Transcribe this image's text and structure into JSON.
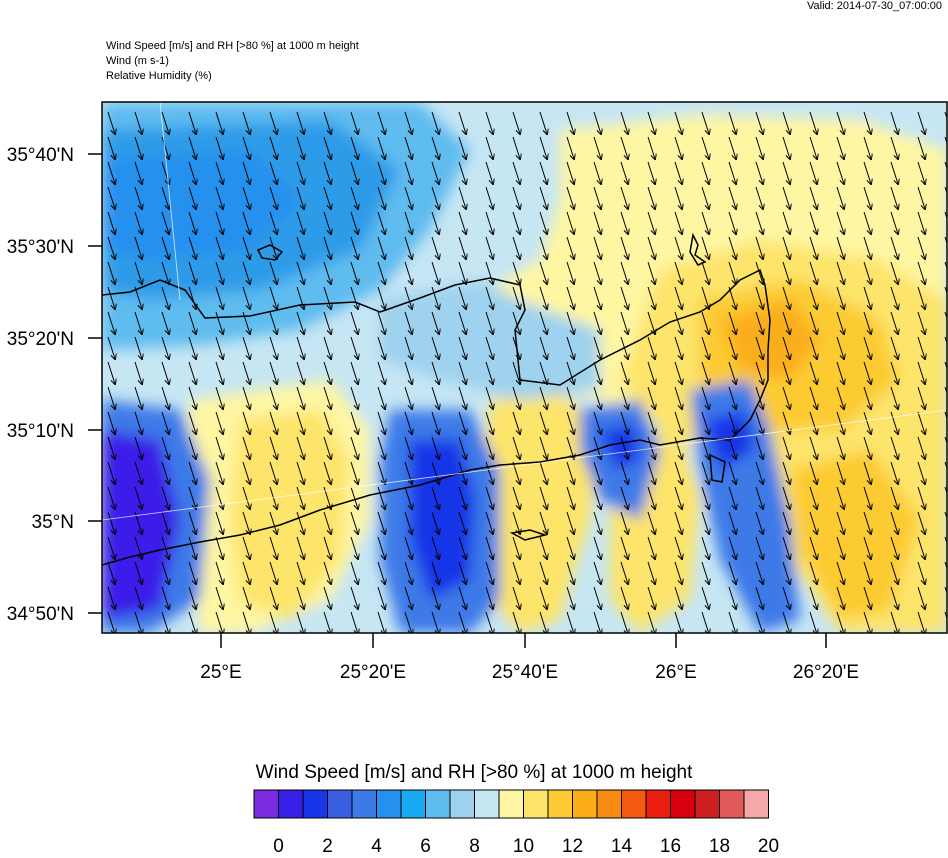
{
  "valid_time": "Valid: 2014-07-30_07:00:00",
  "header_lines": [
    "Wind Speed [m/s] and RH [>80 %] at 1000 m height",
    "Wind   (m s-1)",
    "Relative Humidity    (%)"
  ],
  "map": {
    "lat_labels": [
      "35°40'N",
      "35°30'N",
      "35°20'N",
      "35°10'N",
      "35°N",
      "34°50'N"
    ],
    "lon_labels": [
      "25°E",
      "25°20'E",
      "25°40'E",
      "26°E",
      "26°20'E"
    ],
    "wind_direction": "north-northwest to south-southeast (arrows pointing down-right)"
  },
  "colorbar": {
    "title": "Wind Speed [m/s] and RH [>80 %] at 1000 m height",
    "tick_labels": [
      "0",
      "2",
      "4",
      "6",
      "8",
      "10",
      "12",
      "14",
      "16",
      "18",
      "20"
    ],
    "colors": [
      "#7b2be0",
      "#3a1fe8",
      "#1636e8",
      "#3a5fe0",
      "#3d7ae8",
      "#2690ef",
      "#18aaf3",
      "#5ebcef",
      "#9fd2ee",
      "#c6e6f4",
      "#fff6a3",
      "#fde46a",
      "#fccb33",
      "#fbae1a",
      "#f98a12",
      "#f45a0f",
      "#e81e0e",
      "#d8000d",
      "#cc2020",
      "#e05a5a",
      "#f6a8a8"
    ]
  }
}
